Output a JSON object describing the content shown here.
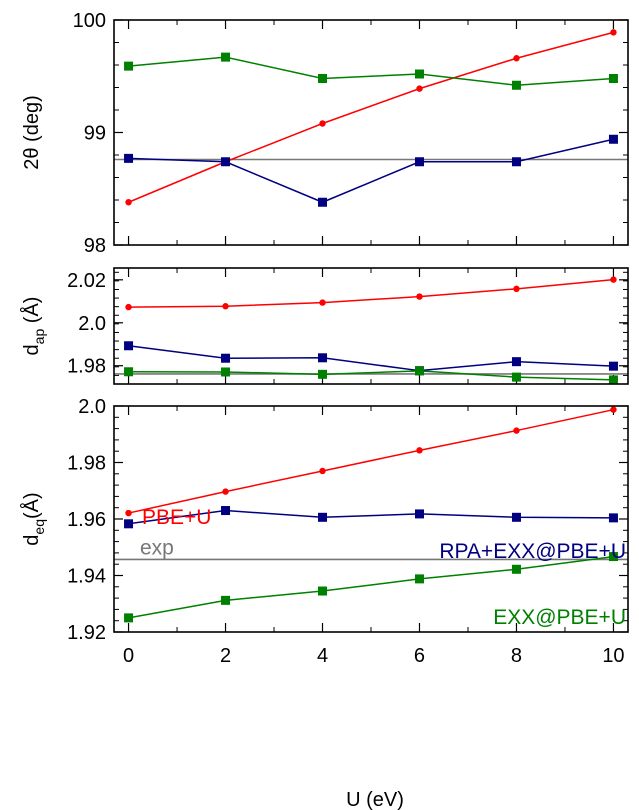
{
  "chart_data": [
    {
      "type": "line",
      "panel": "top",
      "ylabel": "2θ (deg)",
      "xlim": [
        -0.3,
        10.3
      ],
      "ylim": [
        98,
        100
      ],
      "yticks": [
        "98",
        "99",
        "100"
      ],
      "x": [
        0,
        2,
        4,
        6,
        8,
        10
      ],
      "reference_line": {
        "label": "exp",
        "value": 98.76,
        "color": "#777777"
      },
      "series": [
        {
          "name": "PBE+U",
          "color": "#ff0000",
          "marker": "circle",
          "values": [
            98.38,
            98.74,
            99.08,
            99.39,
            99.66,
            99.89
          ]
        },
        {
          "name": "RPA+EXX@PBE+U",
          "color": "#000080",
          "marker": "square",
          "values": [
            98.77,
            98.74,
            98.38,
            98.74,
            98.74,
            98.94
          ]
        },
        {
          "name": "EXX@PBE+U",
          "color": "#008000",
          "marker": "square",
          "values": [
            99.59,
            99.67,
            99.48,
            99.52,
            99.42,
            99.48
          ]
        }
      ]
    },
    {
      "type": "line",
      "panel": "middle",
      "ylabel_main": "d",
      "ylabel_sub": "ap",
      "ylabel_unit": " (Å)",
      "xlim": [
        -0.3,
        10.3
      ],
      "ylim": [
        1.9715,
        2.0255
      ],
      "yticks": [
        "1.98",
        "2.0",
        "2.02"
      ],
      "x": [
        0,
        2,
        4,
        6,
        8,
        10
      ],
      "reference_line": {
        "label": "exp",
        "value": 1.9762,
        "color": "#777777"
      },
      "series": [
        {
          "name": "PBE+U",
          "color": "#ff0000",
          "marker": "circle",
          "values": [
            2.0073,
            2.0077,
            2.0094,
            2.0122,
            2.0158,
            2.0201
          ]
        },
        {
          "name": "RPA+EXX@PBE+U",
          "color": "#000080",
          "marker": "square",
          "values": [
            1.9893,
            1.9835,
            1.9837,
            1.9777,
            1.9819,
            1.9798
          ]
        },
        {
          "name": "EXX@PBE+U",
          "color": "#008000",
          "marker": "square",
          "values": [
            1.9772,
            1.9771,
            1.976,
            1.9776,
            1.9747,
            1.9734
          ]
        }
      ]
    },
    {
      "type": "line",
      "panel": "bottom",
      "ylabel_main": "d",
      "ylabel_sub": "eq",
      "ylabel_unit": "(Å)",
      "xlabel": "U (eV)",
      "xlim": [
        -0.3,
        10.3
      ],
      "ylim": [
        1.92,
        2.0
      ],
      "yticks": [
        "1.92",
        "1.94",
        "1.96",
        "1.98",
        "2.0"
      ],
      "xticks": [
        "0",
        "2",
        "4",
        "6",
        "8",
        "10"
      ],
      "x": [
        0,
        2,
        4,
        6,
        8,
        10
      ],
      "reference_line": {
        "label": "exp",
        "value": 1.9457,
        "color": "#777777"
      },
      "annotations": [
        {
          "text": "PBE+U",
          "color": "#ff0000"
        },
        {
          "text": "RPA+EXX@PBE+U",
          "color": "#000080"
        },
        {
          "text": "exp",
          "color": "#777777"
        },
        {
          "text": "EXX@PBE+U",
          "color": "#008000"
        }
      ],
      "series": [
        {
          "name": "PBE+U",
          "color": "#ff0000",
          "marker": "circle",
          "values": [
            1.9621,
            1.9697,
            1.977,
            1.9843,
            1.9913,
            1.9987
          ]
        },
        {
          "name": "RPA+EXX@PBE+U",
          "color": "#000080",
          "marker": "square",
          "values": [
            1.9583,
            1.963,
            1.9606,
            1.9618,
            1.9606,
            1.9604
          ]
        },
        {
          "name": "EXX@PBE+U",
          "color": "#008000",
          "marker": "square",
          "values": [
            1.925,
            1.9312,
            1.9345,
            1.9388,
            1.9422,
            1.9467
          ]
        }
      ]
    }
  ]
}
